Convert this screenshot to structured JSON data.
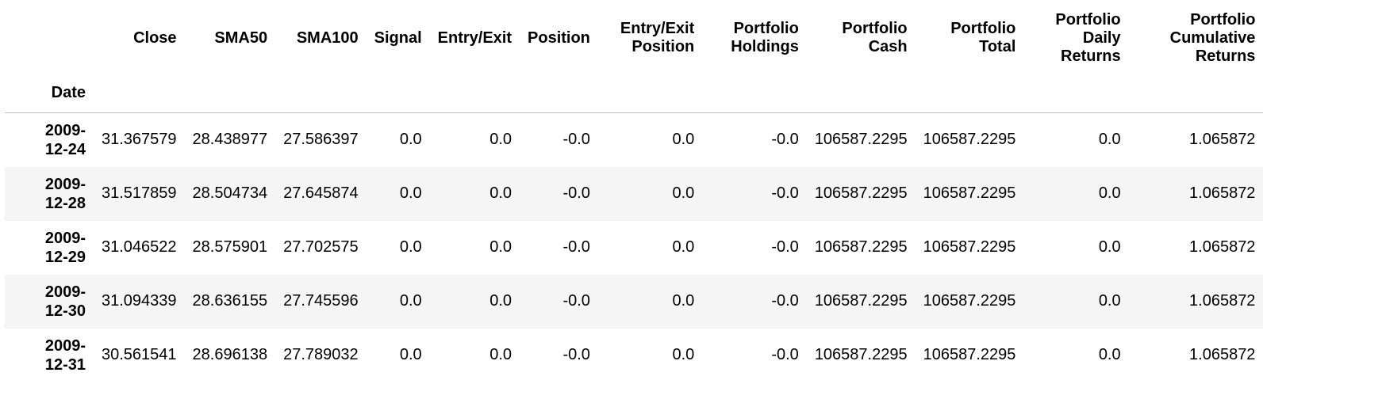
{
  "table": {
    "index_name": "Date",
    "columns": [
      [
        "Close"
      ],
      [
        "SMA50"
      ],
      [
        "SMA100"
      ],
      [
        "Signal"
      ],
      [
        "Entry/Exit"
      ],
      [
        "Position"
      ],
      [
        "Entry/Exit",
        "Position"
      ],
      [
        "Portfolio",
        "Holdings"
      ],
      [
        "Portfolio",
        "Cash"
      ],
      [
        "Portfolio",
        "Total"
      ],
      [
        "Portfolio",
        "Daily",
        "Returns"
      ],
      [
        "Portfolio",
        "Cumulative",
        "Returns"
      ]
    ],
    "rows": [
      {
        "date": [
          "2009-",
          "12-24"
        ],
        "values": [
          "31.367579",
          "28.438977",
          "27.586397",
          "0.0",
          "0.0",
          "-0.0",
          "0.0",
          "-0.0",
          "106587.2295",
          "106587.2295",
          "0.0",
          "1.065872"
        ]
      },
      {
        "date": [
          "2009-",
          "12-28"
        ],
        "values": [
          "31.517859",
          "28.504734",
          "27.645874",
          "0.0",
          "0.0",
          "-0.0",
          "0.0",
          "-0.0",
          "106587.2295",
          "106587.2295",
          "0.0",
          "1.065872"
        ]
      },
      {
        "date": [
          "2009-",
          "12-29"
        ],
        "values": [
          "31.046522",
          "28.575901",
          "27.702575",
          "0.0",
          "0.0",
          "-0.0",
          "0.0",
          "-0.0",
          "106587.2295",
          "106587.2295",
          "0.0",
          "1.065872"
        ]
      },
      {
        "date": [
          "2009-",
          "12-30"
        ],
        "values": [
          "31.094339",
          "28.636155",
          "27.745596",
          "0.0",
          "0.0",
          "-0.0",
          "0.0",
          "-0.0",
          "106587.2295",
          "106587.2295",
          "0.0",
          "1.065872"
        ]
      },
      {
        "date": [
          "2009-",
          "12-31"
        ],
        "values": [
          "30.561541",
          "28.696138",
          "27.789032",
          "0.0",
          "0.0",
          "-0.0",
          "0.0",
          "-0.0",
          "106587.2295",
          "106587.2295",
          "0.0",
          "1.065872"
        ]
      }
    ]
  }
}
